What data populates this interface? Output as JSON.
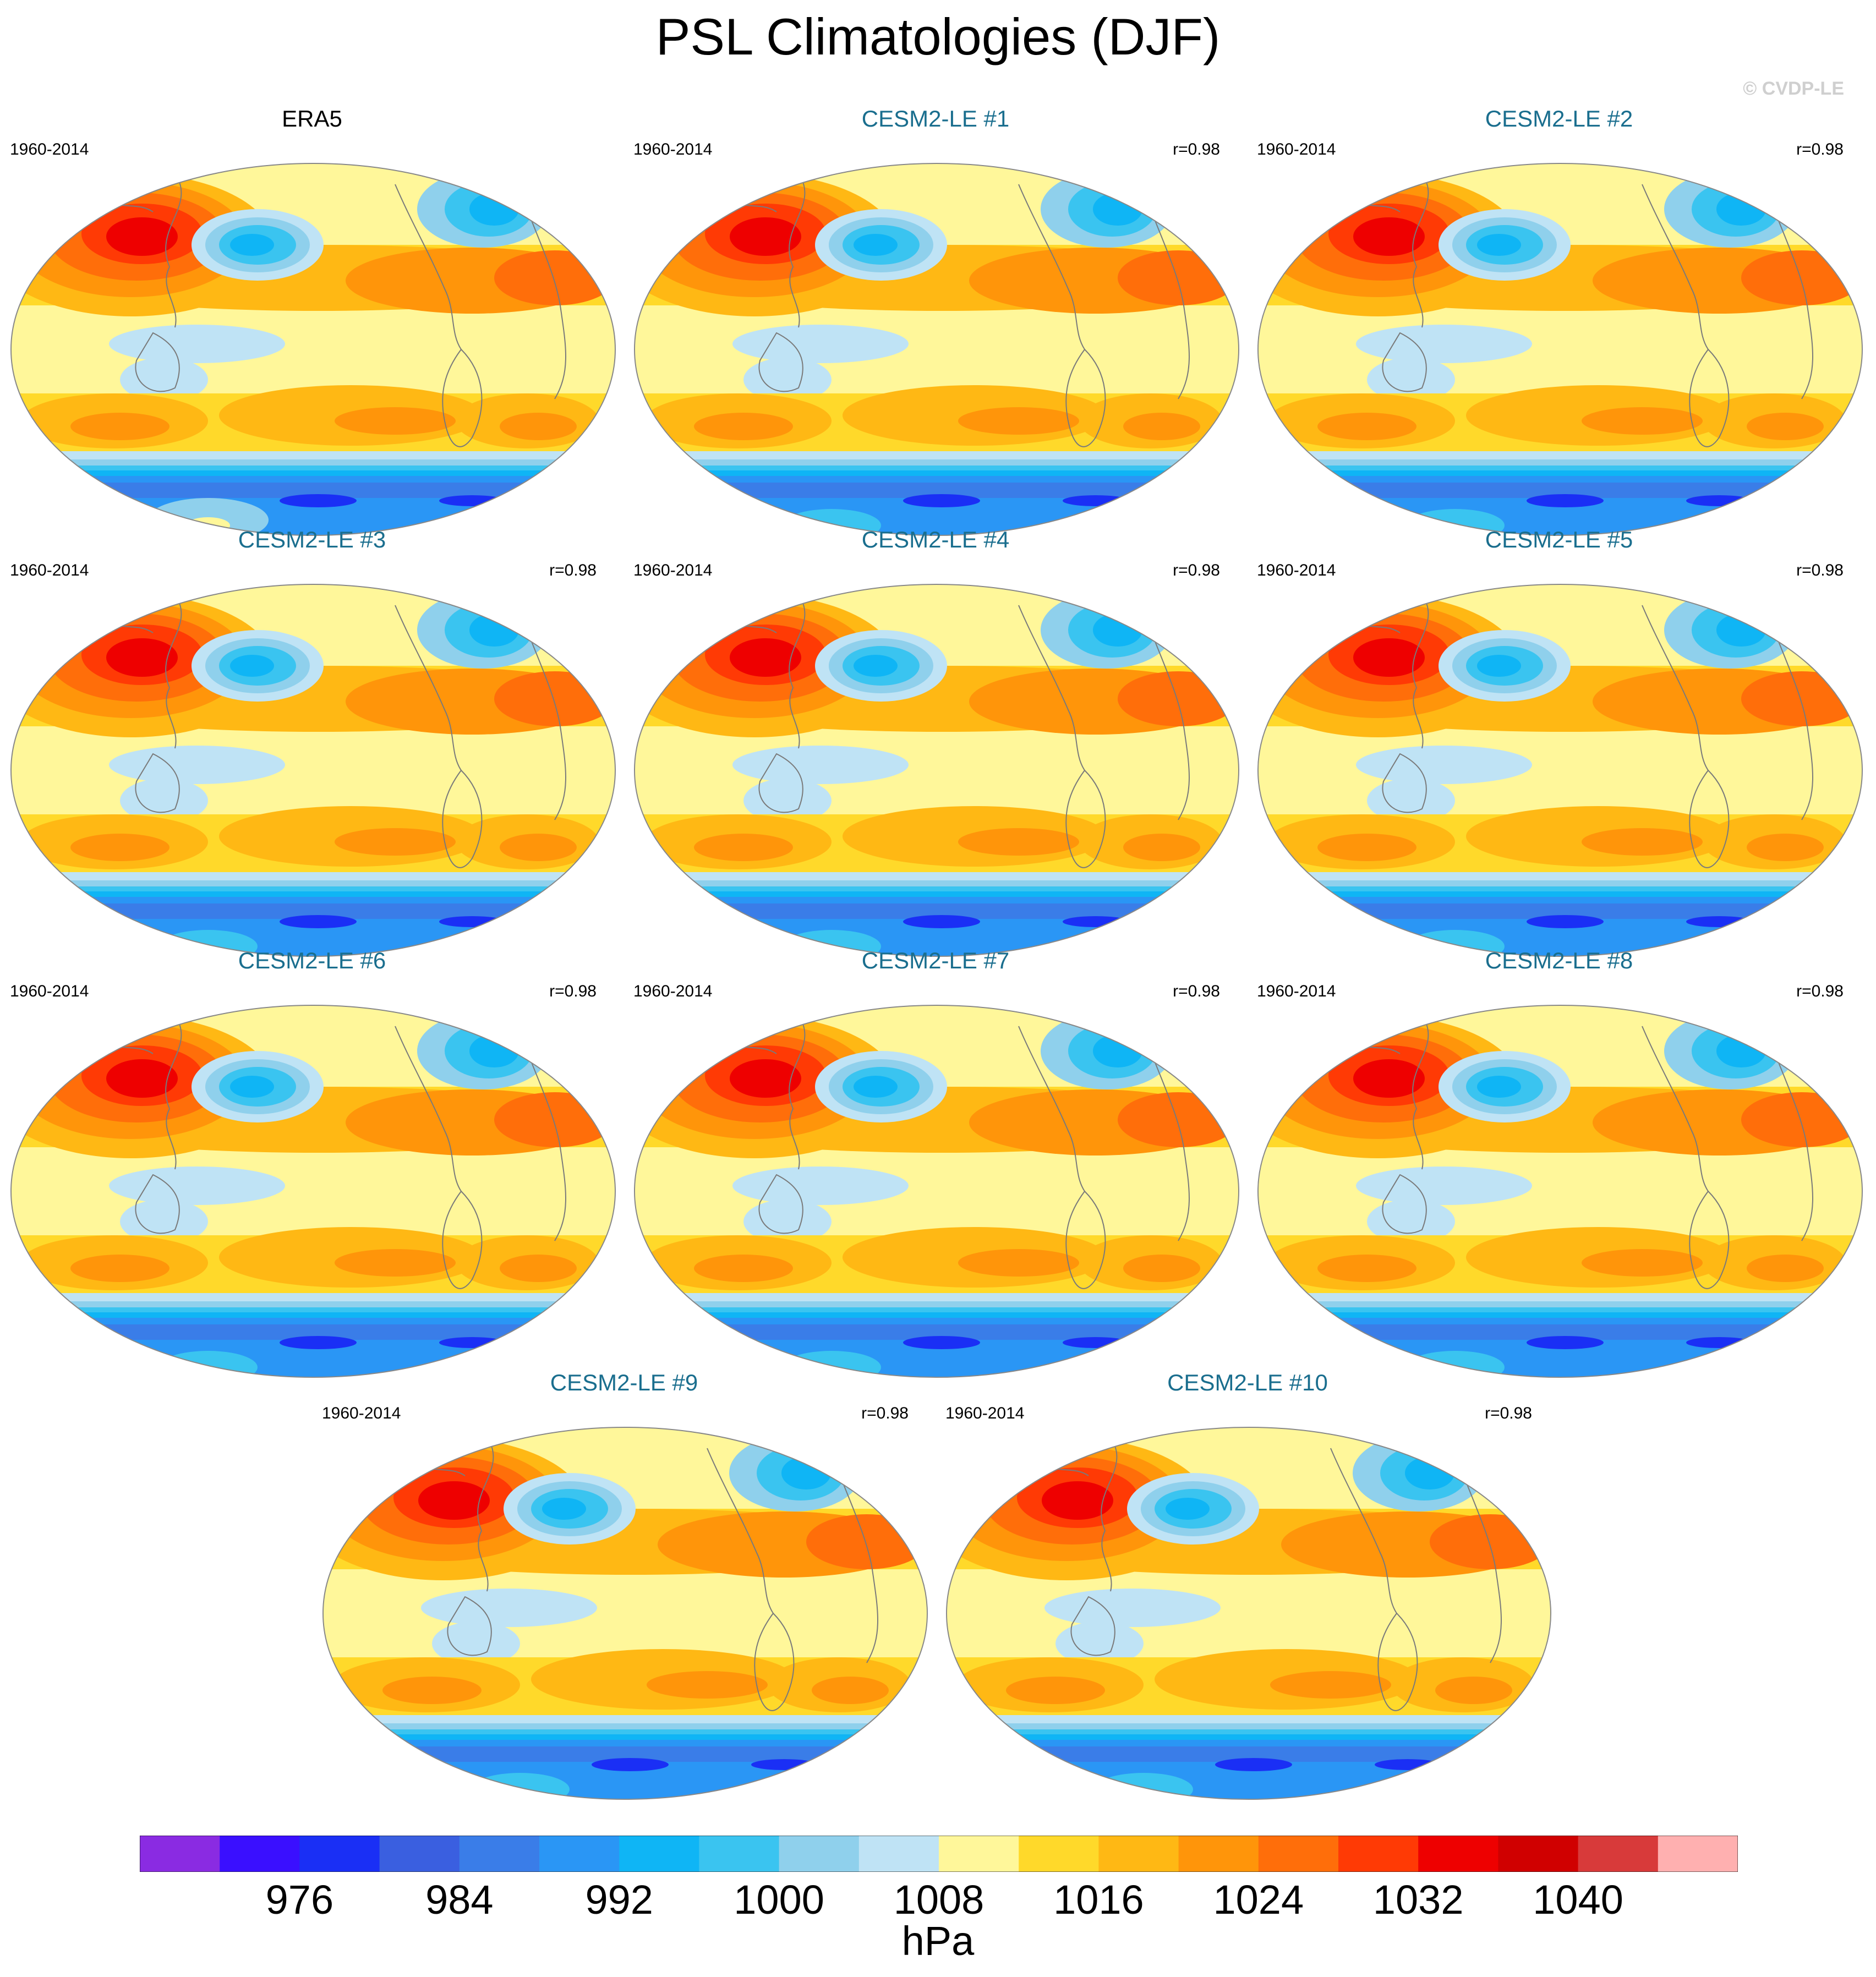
{
  "figure": {
    "title": "PSL Climatologies (DJF)",
    "watermark": "© CVDP-LE"
  },
  "chart_data": {
    "type": "heatmap",
    "title": "PSL Climatologies (DJF)",
    "projection": "Robinson (Pacific-centered)",
    "variable": "PSL",
    "season": "DJF",
    "panels": [
      {
        "title": "ERA5",
        "period": "1960-2014",
        "corr": "",
        "source": "observations",
        "color_role": "obs"
      },
      {
        "title": "CESM2-LE #1",
        "period": "1960-2014",
        "corr": "r=0.98",
        "source": "model",
        "color_role": "model"
      },
      {
        "title": "CESM2-LE #2",
        "period": "1960-2014",
        "corr": "r=0.98",
        "source": "model",
        "color_role": "model"
      },
      {
        "title": "CESM2-LE #3",
        "period": "1960-2014",
        "corr": "r=0.98",
        "source": "model",
        "color_role": "model"
      },
      {
        "title": "CESM2-LE #4",
        "period": "1960-2014",
        "corr": "r=0.98",
        "source": "model",
        "color_role": "model"
      },
      {
        "title": "CESM2-LE #5",
        "period": "1960-2014",
        "corr": "r=0.98",
        "source": "model",
        "color_role": "model"
      },
      {
        "title": "CESM2-LE #6",
        "period": "1960-2014",
        "corr": "r=0.98",
        "source": "model",
        "color_role": "model"
      },
      {
        "title": "CESM2-LE #7",
        "period": "1960-2014",
        "corr": "r=0.98",
        "source": "model",
        "color_role": "model"
      },
      {
        "title": "CESM2-LE #8",
        "period": "1960-2014",
        "corr": "r=0.98",
        "source": "model",
        "color_role": "model"
      },
      {
        "title": "CESM2-LE #9",
        "period": "1960-2014",
        "corr": "r=0.98",
        "source": "model",
        "color_role": "model"
      },
      {
        "title": "CESM2-LE #10",
        "period": "1960-2014",
        "corr": "r=0.98",
        "source": "model",
        "color_role": "model"
      }
    ],
    "colorbar": {
      "units": "hPa",
      "bin_width": 4,
      "range": [
        968,
        1048
      ],
      "tick_labels": [
        "976",
        "984",
        "992",
        "1000",
        "1008",
        "1016",
        "1024",
        "1032",
        "1040"
      ],
      "tick_values": [
        976,
        984,
        992,
        1000,
        1008,
        1016,
        1024,
        1032,
        1040
      ],
      "colors": [
        "#8a2be2",
        "#3a0fff",
        "#1a2ff5",
        "#3a5fe0",
        "#3a7de8",
        "#2a96f5",
        "#0fb5f5",
        "#3ac4f0",
        "#8fd0ec",
        "#bfe3f5",
        "#fff79a",
        "#ffd92a",
        "#ffb814",
        "#ff950a",
        "#ff6e0a",
        "#ff3a05",
        "#ee0000",
        "#d00000",
        "#d83a3a",
        "#ffb0b0"
      ]
    },
    "palette": {
      "obs_title": "#000000",
      "model_title": "#1a6e8e",
      "coast": "#7a7a7a"
    }
  }
}
